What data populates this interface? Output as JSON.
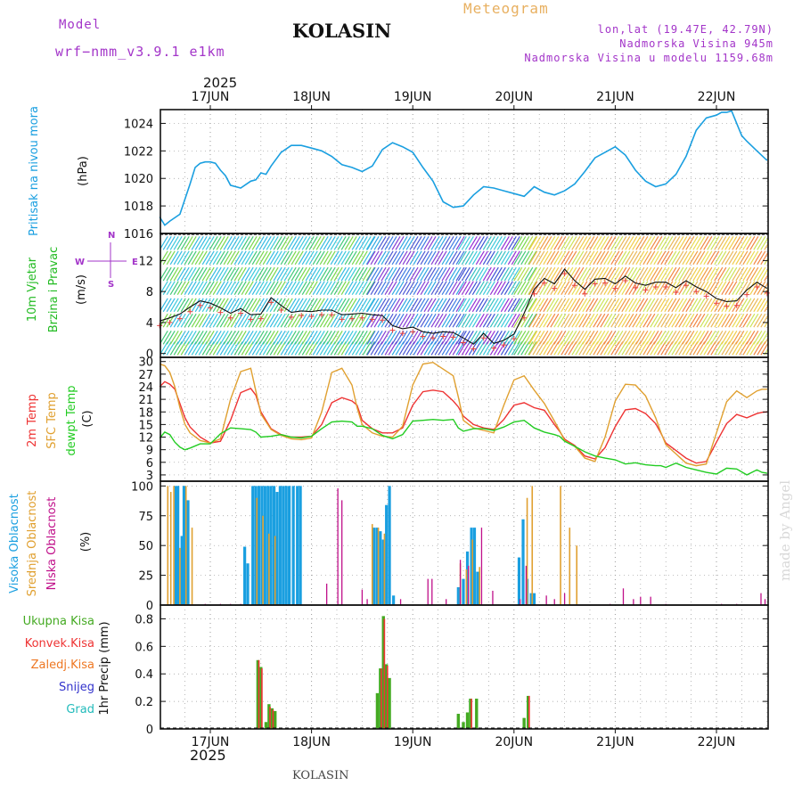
{
  "header": {
    "model_label": "Model",
    "model_name": "wrf−nmm_v3.9.1  e1km",
    "station": "KOLASIN",
    "title": "Meteogram",
    "lonlat": "lon,lat (19.47E, 42.79N)",
    "elevation": "Nadmorska Visina 945m",
    "model_elevation": "Nadmorska Visina u modelu 1159.68m",
    "year_top": "2025",
    "year_bottom": "2025",
    "footer_station": "KOLASIN",
    "watermark": "made by Angel"
  },
  "colors": {
    "pressure": "#1a9fe0",
    "wind_label": "#22bb22",
    "temp2m": "#ee3333",
    "sfc_temp": "#e0a030",
    "dewpt": "#22cc22",
    "high_cloud": "#1a9fe0",
    "mid_cloud": "#e0a030",
    "low_cloud": "#c0108a",
    "total_precip": "#44aa22",
    "conv_precip": "#ee3333",
    "frozen": "#ee7722",
    "snow": "#3333cc",
    "hail": "#22bbbb",
    "purple": "#a335c9"
  },
  "days": [
    "17JUN",
    "18JUN",
    "19JUN",
    "20JUN",
    "21JUN",
    "22JUN"
  ],
  "chart_data": [
    {
      "type": "line",
      "id": "pressure",
      "ylabel": "Pritisak na nivou mora",
      "unit": "(hPa)",
      "yticks": [
        "1016",
        "1018",
        "1020",
        "1022",
        "1024"
      ],
      "ylim": [
        1016,
        1025
      ],
      "x_unit": "days from 17JUN 00UTC",
      "x": [
        -0.5,
        -0.45,
        -0.4,
        -0.3,
        -0.2,
        -0.15,
        -0.1,
        -0.05,
        0,
        0.05,
        0.1,
        0.15,
        0.2,
        0.3,
        0.4,
        0.45,
        0.5,
        0.55,
        0.6,
        0.7,
        0.8,
        0.9,
        1,
        1.1,
        1.2,
        1.3,
        1.4,
        1.5,
        1.6,
        1.7,
        1.8,
        1.9,
        2,
        2.1,
        2.2,
        2.3,
        2.4,
        2.5,
        2.6,
        2.7,
        2.8,
        2.9,
        3,
        3.1,
        3.2,
        3.3,
        3.4,
        3.5,
        3.6,
        3.7,
        3.8,
        3.9,
        4,
        4.1,
        4.2,
        4.3,
        4.4,
        4.5,
        4.6,
        4.7,
        4.8,
        4.9,
        5,
        5.05,
        5.1,
        5.15,
        5.2,
        5.25,
        5.3,
        5.4,
        5.5
      ],
      "y": [
        1017.2,
        1016.6,
        1016.9,
        1017.4,
        1019.6,
        1020.8,
        1021.1,
        1021.2,
        1021.2,
        1021.1,
        1020.6,
        1020.2,
        1019.5,
        1019.3,
        1019.8,
        1019.9,
        1020.4,
        1020.3,
        1020.9,
        1021.9,
        1022.4,
        1022.4,
        1022.2,
        1022.0,
        1021.6,
        1021.0,
        1020.8,
        1020.5,
        1020.9,
        1022.1,
        1022.6,
        1022.3,
        1021.9,
        1020.8,
        1019.8,
        1018.3,
        1017.9,
        1018.0,
        1018.8,
        1019.4,
        1019.3,
        1019.1,
        1018.9,
        1018.7,
        1019.4,
        1019.0,
        1018.8,
        1019.1,
        1019.6,
        1020.5,
        1021.5,
        1021.9,
        1022.3,
        1021.7,
        1020.6,
        1019.8,
        1019.4,
        1019.6,
        1020.3,
        1021.6,
        1023.5,
        1024.4,
        1024.6,
        1024.8,
        1024.8,
        1024.9,
        1024.0,
        1023.1,
        1022.7,
        1022.0,
        1021.3
      ]
    },
    {
      "type": "line",
      "id": "wind",
      "ylabel": "10m Vjetar Brzina i Pravac",
      "unit": "(m/s)",
      "yticks": [
        "0",
        "4",
        "8",
        "12"
      ],
      "ylim": [
        -0.5,
        15.5
      ],
      "compass": "N S E W",
      "x": [
        -0.5,
        -0.4,
        -0.3,
        -0.2,
        -0.1,
        0,
        0.1,
        0.2,
        0.3,
        0.4,
        0.5,
        0.6,
        0.7,
        0.8,
        0.9,
        1,
        1.1,
        1.2,
        1.3,
        1.4,
        1.5,
        1.6,
        1.7,
        1.8,
        1.9,
        2,
        2.1,
        2.2,
        2.3,
        2.4,
        2.5,
        2.6,
        2.7,
        2.8,
        2.9,
        3,
        3.1,
        3.2,
        3.3,
        3.4,
        3.5,
        3.6,
        3.7,
        3.8,
        3.9,
        4,
        4.1,
        4.2,
        4.3,
        4.4,
        4.5,
        4.6,
        4.7,
        4.8,
        4.9,
        5,
        5.1,
        5.2,
        5.3,
        5.4,
        5.5
      ],
      "y": [
        4.2,
        4.6,
        5.1,
        6.0,
        6.8,
        6.5,
        5.9,
        5.2,
        5.8,
        5.0,
        5.1,
        7.2,
        6.2,
        5.3,
        5.5,
        5.4,
        5.6,
        5.6,
        5.0,
        5.1,
        5.2,
        5.0,
        4.9,
        3.6,
        3.2,
        3.4,
        2.8,
        2.6,
        2.8,
        2.7,
        2.0,
        1.2,
        2.6,
        1.3,
        1.7,
        2.5,
        5.2,
        8.3,
        9.7,
        9.0,
        10.9,
        9.4,
        8.3,
        9.6,
        9.7,
        9.0,
        10.0,
        9.1,
        8.8,
        9.2,
        9.2,
        8.5,
        9.4,
        8.6,
        8.0,
        7.1,
        6.7,
        6.8,
        8.2,
        9.2,
        8.4
      ]
    },
    {
      "type": "line",
      "id": "temperature",
      "ylabels": [
        "2m Temp",
        "SFC Temp",
        "dewpt Temp"
      ],
      "unit": "(C)",
      "yticks": [
        "3",
        "6",
        "9",
        "12",
        "15",
        "18",
        "21",
        "24",
        "27",
        "30"
      ],
      "ylim": [
        1.5,
        31
      ],
      "x": [
        -0.5,
        -0.45,
        -0.4,
        -0.35,
        -0.3,
        -0.25,
        -0.2,
        -0.1,
        0,
        0.1,
        0.2,
        0.3,
        0.4,
        0.45,
        0.5,
        0.6,
        0.7,
        0.8,
        0.9,
        1,
        1.1,
        1.2,
        1.3,
        1.4,
        1.45,
        1.5,
        1.6,
        1.7,
        1.8,
        1.9,
        2,
        2.1,
        2.2,
        2.3,
        2.4,
        2.45,
        2.5,
        2.6,
        2.7,
        2.8,
        2.9,
        3,
        3.1,
        3.2,
        3.3,
        3.4,
        3.45,
        3.5,
        3.6,
        3.7,
        3.8,
        3.9,
        4,
        4.1,
        4.2,
        4.3,
        4.4,
        4.45,
        4.5,
        4.6,
        4.7,
        4.8,
        4.9,
        5,
        5.1,
        5.2,
        5.3,
        5.4,
        5.45,
        5.5
      ],
      "series": [
        {
          "name": "2m Temp",
          "values": [
            24.0,
            25.2,
            24.6,
            23.4,
            20.0,
            16.6,
            14.4,
            12.0,
            10.6,
            11.0,
            16.0,
            22.6,
            23.6,
            22.0,
            18.0,
            14.0,
            12.6,
            12.0,
            12.0,
            12.2,
            15.0,
            20.2,
            21.4,
            20.6,
            19.6,
            16.0,
            14.0,
            13.0,
            13.0,
            14.2,
            19.6,
            22.8,
            23.2,
            22.8,
            20.6,
            19.2,
            17.0,
            15.0,
            14.2,
            13.8,
            16.2,
            19.6,
            20.2,
            19.0,
            18.4,
            15.0,
            13.4,
            11.5,
            10.0,
            7.5,
            6.8,
            9.5,
            14.5,
            18.5,
            18.8,
            17.6,
            15.2,
            13.0,
            10.6,
            8.8,
            7.0,
            5.8,
            6.2,
            10.8,
            15.2,
            17.4,
            16.6,
            17.6,
            17.9,
            18.0
          ]
        },
        {
          "name": "SFC Temp",
          "values": [
            29.4,
            29.0,
            27.4,
            24.0,
            19.0,
            15.0,
            13.0,
            11.2,
            10.6,
            11.6,
            21.0,
            27.6,
            28.4,
            23.0,
            17.5,
            13.8,
            12.4,
            11.6,
            11.4,
            11.8,
            18.0,
            27.4,
            28.4,
            24.4,
            19.0,
            15.0,
            13.0,
            12.2,
            12.0,
            14.6,
            24.4,
            29.4,
            29.8,
            28.2,
            26.6,
            21.6,
            16.0,
            14.2,
            13.6,
            13.0,
            19.6,
            25.6,
            26.6,
            23.2,
            20.0,
            15.8,
            13.6,
            11.2,
            9.8,
            7.0,
            6.2,
            12.0,
            20.6,
            24.6,
            24.4,
            21.8,
            16.6,
            13.2,
            10.2,
            8.0,
            5.8,
            5.2,
            5.6,
            13.0,
            20.4,
            23.0,
            21.4,
            23.0,
            23.4,
            23.4
          ]
        },
        {
          "name": "dewpt Temp",
          "values": [
            11.8,
            13.2,
            12.6,
            10.8,
            9.6,
            9.0,
            9.4,
            10.4,
            10.4,
            12.8,
            14.2,
            14.0,
            13.8,
            13.2,
            12.0,
            12.2,
            12.6,
            12.0,
            11.8,
            12.2,
            14.0,
            15.6,
            15.8,
            15.6,
            14.6,
            14.6,
            14.0,
            12.4,
            11.6,
            12.6,
            15.8,
            16.0,
            16.2,
            16.0,
            16.2,
            14.2,
            13.4,
            14.0,
            14.0,
            13.6,
            14.4,
            15.6,
            16.0,
            14.2,
            13.2,
            12.6,
            12.2,
            11.0,
            9.8,
            8.5,
            7.5,
            7.0,
            6.6,
            5.6,
            5.9,
            5.4,
            5.2,
            5.2,
            4.8,
            5.8,
            4.8,
            4.2,
            3.6,
            3.2,
            4.6,
            4.4,
            3.0,
            4.2,
            3.6,
            3.4
          ]
        }
      ]
    },
    {
      "type": "bar",
      "id": "clouds",
      "ylabels": [
        "Visoka Oblacnost",
        "Srednja Oblacnost",
        "Niska Oblacnost"
      ],
      "unit": "(%)",
      "yticks": [
        "0",
        "25",
        "50",
        "75",
        "100"
      ],
      "ylim": [
        0,
        104
      ],
      "series": [
        {
          "name": "Visoka Oblacnost",
          "points": [
            [
              -0.34,
              100
            ],
            [
              -0.32,
              100
            ],
            [
              -0.28,
              58
            ],
            [
              -0.26,
              100
            ],
            [
              -0.22,
              88
            ],
            [
              0.34,
              49
            ],
            [
              0.37,
              35
            ],
            [
              0.42,
              100
            ],
            [
              0.45,
              100
            ],
            [
              0.48,
              100
            ],
            [
              0.51,
              100
            ],
            [
              0.54,
              100
            ],
            [
              0.57,
              100
            ],
            [
              0.6,
              100
            ],
            [
              0.63,
              100
            ],
            [
              0.66,
              95
            ],
            [
              0.69,
              100
            ],
            [
              0.72,
              100
            ],
            [
              0.75,
              100
            ],
            [
              0.78,
              100
            ],
            [
              0.82,
              100
            ],
            [
              0.86,
              100
            ],
            [
              0.89,
              100
            ],
            [
              1.62,
              65
            ],
            [
              1.65,
              65
            ],
            [
              1.68,
              62
            ],
            [
              1.71,
              55
            ],
            [
              1.74,
              84
            ],
            [
              1.77,
              100
            ],
            [
              1.81,
              8
            ],
            [
              2.45,
              15
            ],
            [
              2.5,
              22
            ],
            [
              2.54,
              45
            ],
            [
              2.58,
              65
            ],
            [
              2.61,
              65
            ],
            [
              2.64,
              28
            ],
            [
              3.05,
              40
            ],
            [
              3.09,
              72
            ],
            [
              3.13,
              22
            ],
            [
              3.17,
              10
            ],
            [
              3.2,
              10
            ]
          ]
        },
        {
          "name": "Srednja Oblacnost",
          "points": [
            [
              -0.42,
              100
            ],
            [
              -0.39,
              95
            ],
            [
              -0.36,
              100
            ],
            [
              -0.3,
              48
            ],
            [
              -0.24,
              100
            ],
            [
              -0.18,
              65
            ],
            [
              0.46,
              90
            ],
            [
              0.52,
              75
            ],
            [
              0.58,
              60
            ],
            [
              0.64,
              58
            ],
            [
              1.6,
              68
            ],
            [
              1.66,
              65
            ],
            [
              1.72,
              60
            ],
            [
              2.47,
              35
            ],
            [
              2.53,
              30
            ],
            [
              2.59,
              55
            ],
            [
              2.66,
              32
            ],
            [
              3.13,
              90
            ],
            [
              3.18,
              100
            ],
            [
              3.46,
              100
            ],
            [
              3.55,
              65
            ],
            [
              3.62,
              50
            ]
          ]
        },
        {
          "name": "Niska Oblacnost",
          "points": [
            [
              -0.05,
              1
            ],
            [
              0.1,
              1
            ],
            [
              0.2,
              1
            ],
            [
              0.3,
              1
            ],
            [
              1.15,
              18
            ],
            [
              1.26,
              98
            ],
            [
              1.3,
              88
            ],
            [
              1.5,
              13
            ],
            [
              1.55,
              5
            ],
            [
              1.88,
              5
            ],
            [
              2.15,
              22
            ],
            [
              2.19,
              22
            ],
            [
              2.33,
              5
            ],
            [
              2.47,
              38
            ],
            [
              2.55,
              33
            ],
            [
              2.68,
              65
            ],
            [
              2.79,
              12
            ],
            [
              3.06,
              5
            ],
            [
              3.12,
              33
            ],
            [
              3.32,
              8
            ],
            [
              3.4,
              5
            ],
            [
              3.5,
              10
            ],
            [
              3.95,
              1
            ],
            [
              4.08,
              14
            ],
            [
              4.18,
              5
            ],
            [
              4.25,
              7
            ],
            [
              4.35,
              7
            ],
            [
              4.5,
              1
            ],
            [
              5.05,
              1
            ],
            [
              5.2,
              1
            ],
            [
              5.44,
              10
            ],
            [
              5.48,
              5
            ]
          ]
        }
      ]
    },
    {
      "type": "bar",
      "id": "precip",
      "ylabel": "1hr Precip (mm)",
      "ylabels": [
        "Ukupna Kisa",
        "Konvek.Kisa",
        "Zaledj.Kisa",
        "Snijeg",
        "Grad"
      ],
      "yticks": [
        "0",
        "0.2",
        "0.4",
        "0.6",
        "0.8"
      ],
      "ylim": [
        0,
        0.9
      ],
      "series": [
        {
          "name": "Ukupna Kisa",
          "points": [
            [
              0.47,
              0.5
            ],
            [
              0.5,
              0.45
            ],
            [
              0.55,
              0.05
            ],
            [
              0.58,
              0.18
            ],
            [
              0.61,
              0.15
            ],
            [
              0.64,
              0.13
            ],
            [
              1.65,
              0.26
            ],
            [
              1.68,
              0.44
            ],
            [
              1.71,
              0.82
            ],
            [
              1.74,
              0.47
            ],
            [
              1.77,
              0.37
            ],
            [
              2.45,
              0.11
            ],
            [
              2.5,
              0.05
            ],
            [
              2.54,
              0.12
            ],
            [
              2.57,
              0.22
            ],
            [
              2.63,
              0.22
            ],
            [
              3.1,
              0.08
            ],
            [
              3.14,
              0.24
            ]
          ]
        },
        {
          "name": "Konvek.Kisa",
          "points": [
            [
              0.48,
              0.5
            ],
            [
              0.51,
              0.44
            ],
            [
              0.59,
              0.16
            ],
            [
              0.62,
              0.14
            ],
            [
              1.69,
              0.44
            ],
            [
              1.72,
              0.8
            ],
            [
              1.75,
              0.46
            ],
            [
              2.58,
              0.22
            ],
            [
              3.15,
              0.24
            ]
          ]
        }
      ]
    }
  ]
}
